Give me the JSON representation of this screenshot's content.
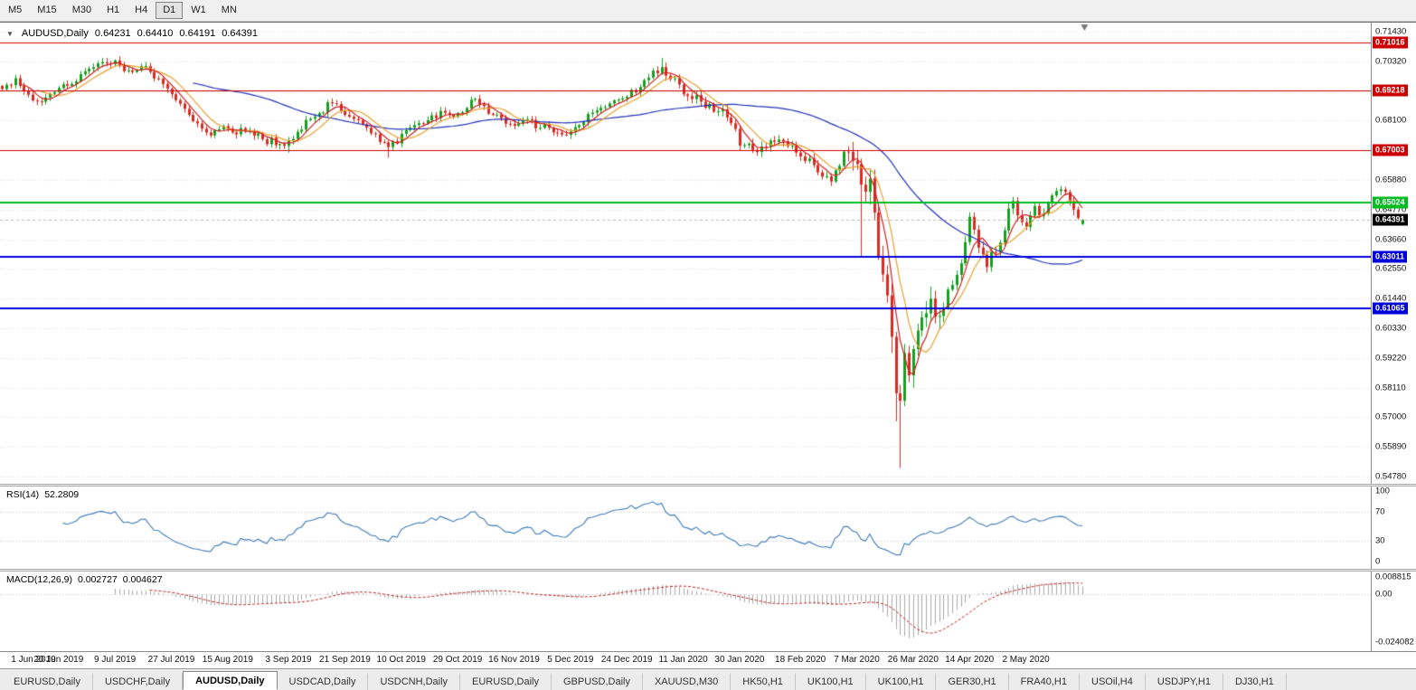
{
  "toolbar": {
    "buttons": [
      "M5",
      "M15",
      "M30",
      "H1",
      "H4",
      "D1",
      "W1",
      "MN"
    ],
    "active": "D1"
  },
  "chart": {
    "header": {
      "dropdown_icon": "▼",
      "symbol": "AUDUSD,Daily",
      "open": "0.64231",
      "high": "0.64410",
      "low": "0.64191",
      "close": "0.64391"
    }
  },
  "rsi_panel": {
    "title": "RSI(14)",
    "value": "52.2809",
    "axis_labels": [
      "100",
      "70",
      "30",
      "0"
    ]
  },
  "macd_panel": {
    "title": "MACD(12,26,9)",
    "value1": "0.002727",
    "value2": "0.004627",
    "axis_labels": [
      "0.008815",
      "0.00",
      "-0.024082"
    ]
  },
  "tabs": {
    "items": [
      "EURUSD,Daily",
      "USDCHF,Daily",
      "AUDUSD,Daily",
      "USDCAD,Daily",
      "USDCNH,Daily",
      "EURUSD,Daily",
      "GBPUSD,Daily",
      "XAUUSD,M30",
      "HK50,H1",
      "UK100,H1",
      "UK100,H1",
      "GER30,H1",
      "FRA40,H1",
      "USOil,H4",
      "USDJPY,H1",
      "DJ30,H1"
    ],
    "active_index": 2
  },
  "chart_data": {
    "type": "candlestick",
    "symbol": "AUDUSD",
    "timeframe": "Daily",
    "current_bar": {
      "open": 0.64231,
      "high": 0.6441,
      "low": 0.64191,
      "close": 0.64391
    },
    "price_axis": {
      "min": 0.5478,
      "max": 0.7143,
      "tick_step": 0.0111,
      "decimals": 5
    },
    "x_axis": {
      "total_slots": 316,
      "bars_visible": 250,
      "labels": [
        {
          "i": 0,
          "text": "1 Jun 2019"
        },
        {
          "i": 13,
          "text": "20 Jun 2019"
        },
        {
          "i": 26,
          "text": "9 Jul 2019"
        },
        {
          "i": 39,
          "text": "27 Jul 2019"
        },
        {
          "i": 52,
          "text": "15 Aug 2019"
        },
        {
          "i": 66,
          "text": "3 Sep 2019"
        },
        {
          "i": 79,
          "text": "21 Sep 2019"
        },
        {
          "i": 92,
          "text": "10 Oct 2019"
        },
        {
          "i": 105,
          "text": "29 Oct 2019"
        },
        {
          "i": 118,
          "text": "16 Nov 2019"
        },
        {
          "i": 131,
          "text": "5 Dec 2019"
        },
        {
          "i": 144,
          "text": "24 Dec 2019"
        },
        {
          "i": 157,
          "text": "11 Jan 2020"
        },
        {
          "i": 170,
          "text": "30 Jan 2020"
        },
        {
          "i": 184,
          "text": "18 Feb 2020"
        },
        {
          "i": 197,
          "text": "7 Mar 2020"
        },
        {
          "i": 210,
          "text": "26 Mar 2020"
        },
        {
          "i": 223,
          "text": "14 Apr 2020"
        },
        {
          "i": 236,
          "text": "2 May 2020"
        }
      ]
    },
    "horizontal_lines": [
      {
        "price": 0.71016,
        "color": "#cc0000",
        "width": 1
      },
      {
        "price": 0.69218,
        "color": "#cc0000",
        "width": 1
      },
      {
        "price": 0.67003,
        "color": "#cc0000",
        "width": 1
      },
      {
        "price": 0.65024,
        "color": "#00bb22",
        "width": 2
      },
      {
        "price": 0.63011,
        "color": "#0000dd",
        "width": 2
      },
      {
        "price": 0.61065,
        "color": "#0000dd",
        "width": 2
      }
    ],
    "current_price_line": {
      "price": 0.64391,
      "color": "#000000"
    },
    "candle_colors": {
      "bull": "#14a01e",
      "bear": "#dc2a20"
    },
    "moving_averages": [
      {
        "period": 45,
        "color": "#2030b8"
      },
      {
        "period": 9,
        "color": "#e8a030"
      },
      {
        "period": 5,
        "color": "#cc2020"
      }
    ],
    "candle_anchors": [
      [
        0,
        0.6935
      ],
      [
        3,
        0.6968
      ],
      [
        6,
        0.6905
      ],
      [
        9,
        0.688
      ],
      [
        13,
        0.6925
      ],
      [
        17,
        0.6958
      ],
      [
        20,
        0.7
      ],
      [
        24,
        0.703
      ],
      [
        27,
        0.7022
      ],
      [
        30,
        0.6985
      ],
      [
        33,
        0.7015
      ],
      [
        36,
        0.696
      ],
      [
        39,
        0.6905
      ],
      [
        42,
        0.6855
      ],
      [
        45,
        0.6795
      ],
      [
        48,
        0.676
      ],
      [
        51,
        0.6795
      ],
      [
        54,
        0.676
      ],
      [
        57,
        0.6775
      ],
      [
        60,
        0.6745
      ],
      [
        63,
        0.6725
      ],
      [
        66,
        0.6735
      ],
      [
        68,
        0.677
      ],
      [
        72,
        0.683
      ],
      [
        76,
        0.688
      ],
      [
        79,
        0.6838
      ],
      [
        83,
        0.68
      ],
      [
        86,
        0.676
      ],
      [
        89,
        0.6705
      ],
      [
        92,
        0.676
      ],
      [
        95,
        0.679
      ],
      [
        99,
        0.683
      ],
      [
        102,
        0.6845
      ],
      [
        105,
        0.6832
      ],
      [
        108,
        0.6885
      ],
      [
        111,
        0.6862
      ],
      [
        115,
        0.682
      ],
      [
        118,
        0.6792
      ],
      [
        121,
        0.6812
      ],
      [
        124,
        0.679
      ],
      [
        127,
        0.677
      ],
      [
        130,
        0.6758
      ],
      [
        133,
        0.68
      ],
      [
        136,
        0.6845
      ],
      [
        139,
        0.6865
      ],
      [
        142,
        0.6885
      ],
      [
        144,
        0.6905
      ],
      [
        147,
        0.693
      ],
      [
        150,
        0.699
      ],
      [
        152,
        0.7018
      ],
      [
        154,
        0.6965
      ],
      [
        157,
        0.6908
      ],
      [
        160,
        0.6898
      ],
      [
        163,
        0.6872
      ],
      [
        166,
        0.6848
      ],
      [
        168,
        0.68
      ],
      [
        170,
        0.6725
      ],
      [
        173,
        0.6695
      ],
      [
        176,
        0.6718
      ],
      [
        179,
        0.6742
      ],
      [
        182,
        0.6712
      ],
      [
        184,
        0.6685
      ],
      [
        187,
        0.664
      ],
      [
        190,
        0.66
      ],
      [
        191,
        0.6588
      ],
      [
        193,
        0.6648
      ],
      [
        195,
        0.6688
      ],
      [
        197,
        0.6635
      ],
      [
        198,
        0.6585
      ],
      [
        199,
        0.6545
      ],
      [
        200,
        0.659
      ],
      [
        201,
        0.648
      ],
      [
        202,
        0.63
      ],
      [
        203,
        0.624
      ],
      [
        204,
        0.614
      ],
      [
        205,
        0.5995
      ],
      [
        206,
        0.58
      ],
      [
        207,
        0.5745
      ],
      [
        208,
        0.592
      ],
      [
        209,
        0.586
      ],
      [
        210,
        0.5965
      ],
      [
        212,
        0.606
      ],
      [
        214,
        0.614
      ],
      [
        216,
        0.6058
      ],
      [
        218,
        0.617
      ],
      [
        220,
        0.623
      ],
      [
        222,
        0.636
      ],
      [
        223,
        0.6445
      ],
      [
        225,
        0.6335
      ],
      [
        227,
        0.6262
      ],
      [
        229,
        0.6318
      ],
      [
        231,
        0.6398
      ],
      [
        233,
        0.6512
      ],
      [
        235,
        0.6428
      ],
      [
        236,
        0.6418
      ],
      [
        238,
        0.6488
      ],
      [
        240,
        0.6458
      ],
      [
        242,
        0.653
      ],
      [
        244,
        0.6556
      ],
      [
        246,
        0.6505
      ],
      [
        247,
        0.6468
      ],
      [
        248,
        0.6445
      ],
      [
        249,
        0.64391
      ]
    ],
    "wick_low_overrides": {
      "66": 0.669,
      "89": 0.6671,
      "198": 0.6301,
      "205": 0.594,
      "206": 0.5685,
      "207": 0.551
    },
    "wick_high_overrides": {
      "24": 0.7045,
      "152": 0.7045,
      "195": 0.6715,
      "244": 0.6562
    },
    "volatility_segments": [
      {
        "to": 149,
        "v": 0.0016
      },
      {
        "to": 194,
        "v": 0.002
      },
      {
        "to": 216,
        "v": 0.0048
      },
      {
        "to": 249,
        "v": 0.0024
      }
    ],
    "indicators": [
      {
        "name": "RSI",
        "display": "RSI(14)",
        "value": 52.2809,
        "levels": [
          100,
          70,
          30,
          0
        ],
        "dotted_levels": [
          70,
          30
        ],
        "line_color": "#3e7ab8"
      },
      {
        "name": "MACD",
        "display": "MACD(12,26,9)",
        "values": [
          0.002727,
          0.004627
        ],
        "axis_max": 0.008815,
        "axis_min": -0.024082,
        "histogram_color": "#a8a8a8",
        "signal_color": "#bb2020"
      }
    ]
  }
}
